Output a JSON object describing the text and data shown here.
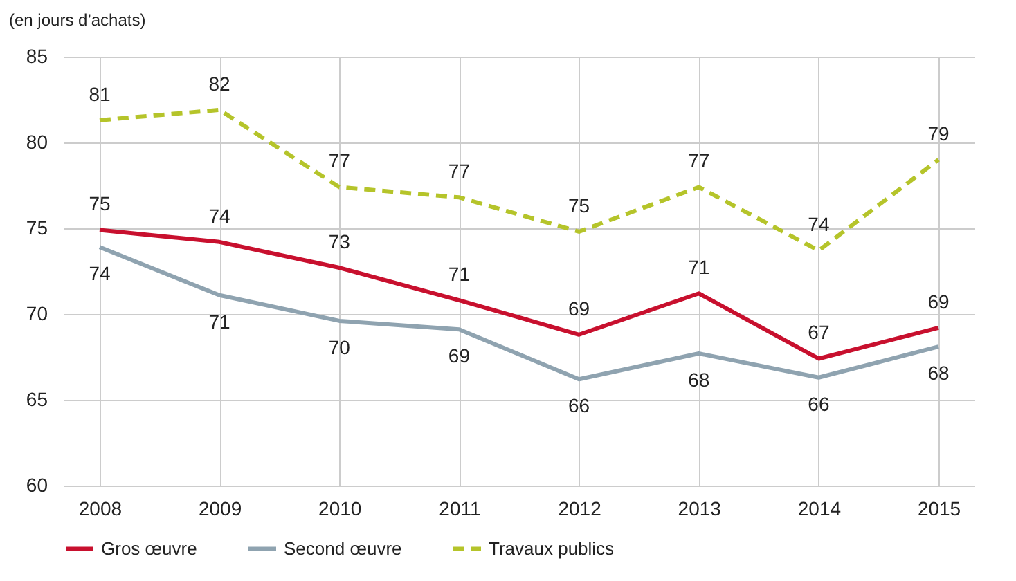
{
  "chart_data": {
    "type": "line",
    "ylabel": "(en jours d’achats)",
    "categories": [
      "2008",
      "2009",
      "2010",
      "2011",
      "2012",
      "2013",
      "2014",
      "2015"
    ],
    "series": [
      {
        "name": "Gros œuvre",
        "color": "#c8102e",
        "values": [
          74.9,
          74.2,
          72.7,
          70.8,
          68.8,
          71.2,
          67.4,
          69.2
        ],
        "value_labels": [
          "75",
          "74",
          "73",
          "71",
          "69",
          "71",
          "67",
          "69"
        ]
      },
      {
        "name": "Second œuvre",
        "color": "#8fa3b0",
        "values": [
          73.9,
          71.1,
          69.6,
          69.1,
          66.2,
          67.7,
          66.3,
          68.1
        ],
        "value_labels": [
          "74",
          "71",
          "70",
          "69",
          "66",
          "68",
          "66",
          "68"
        ]
      },
      {
        "name": "Travaux publics",
        "color": "#b5c42a",
        "line_style": "dashed",
        "values": [
          81.3,
          81.9,
          77.4,
          76.8,
          74.8,
          77.4,
          73.7,
          79.0
        ],
        "value_labels": [
          "81",
          "82",
          "77",
          "77",
          "75",
          "77",
          "74",
          "79"
        ]
      }
    ],
    "ylim": [
      60,
      85
    ],
    "yticks": [
      60,
      65,
      70,
      75,
      80,
      85
    ],
    "grid": true,
    "legend": "bottom",
    "marker": "none"
  }
}
